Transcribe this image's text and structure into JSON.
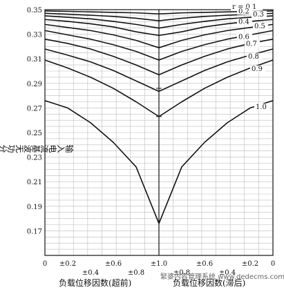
{
  "chart_data": {
    "type": "line",
    "ylabel": "输入电流基波无功分量有效值(pu)",
    "xlabel_left": "负载位移因数(超前)",
    "xlabel_right": "负载位移因数(滞后)",
    "ylim": [
      0.15,
      0.35
    ],
    "yticks": [
      "0.35",
      "0.33",
      "0.31",
      "0.29",
      "0.27",
      "0.25",
      "0.23",
      "0.21",
      "0.19",
      "0.17"
    ],
    "xticks_row1": [
      "0",
      "±0.2",
      "±0.6",
      "±1.0",
      "±0.6",
      "±0.2",
      "0"
    ],
    "xticks_row2": [
      "±0.4",
      "±0.8",
      "±0.8",
      "±0.4"
    ],
    "x": [
      -1.0,
      -0.8,
      -0.6,
      -0.4,
      -0.2,
      0.0,
      0.2,
      0.4,
      0.6,
      0.8,
      1.0
    ],
    "series": [
      {
        "name": "r = 0.1",
        "values": [
          0.349,
          0.3486,
          0.3482,
          0.3478,
          0.3474,
          0.3465,
          0.3474,
          0.3478,
          0.3482,
          0.3486,
          0.349
        ]
      },
      {
        "name": "0.2",
        "values": [
          0.347,
          0.3463,
          0.3455,
          0.3445,
          0.343,
          0.341,
          0.343,
          0.3445,
          0.3455,
          0.3463,
          0.347
        ]
      },
      {
        "name": "0.3",
        "values": [
          0.345,
          0.3438,
          0.3425,
          0.3405,
          0.338,
          0.335,
          0.338,
          0.3405,
          0.3425,
          0.3438,
          0.345
        ]
      },
      {
        "name": "0.4",
        "values": [
          0.342,
          0.3405,
          0.3385,
          0.336,
          0.332,
          0.329,
          0.332,
          0.336,
          0.3385,
          0.3405,
          0.342
        ]
      },
      {
        "name": "0.5",
        "values": [
          0.338,
          0.3355,
          0.333,
          0.3295,
          0.325,
          0.319,
          0.325,
          0.3295,
          0.333,
          0.3355,
          0.338
        ]
      },
      {
        "name": "0.6",
        "values": [
          0.333,
          0.3295,
          0.326,
          0.3215,
          0.316,
          0.309,
          0.316,
          0.3215,
          0.326,
          0.3295,
          0.333
        ]
      },
      {
        "name": "0.7",
        "values": [
          0.326,
          0.3225,
          0.318,
          0.312,
          0.305,
          0.297,
          0.305,
          0.312,
          0.318,
          0.3225,
          0.326
        ]
      },
      {
        "name": "0.8",
        "values": [
          0.318,
          0.313,
          0.3075,
          0.3005,
          0.292,
          0.2835,
          0.292,
          0.3005,
          0.3075,
          0.313,
          0.318
        ]
      },
      {
        "name": "0.9",
        "values": [
          0.309,
          0.3025,
          0.295,
          0.286,
          0.275,
          0.263,
          0.275,
          0.286,
          0.295,
          0.3025,
          0.309
        ]
      },
      {
        "name": "1.0",
        "values": [
          0.276,
          0.27,
          0.258,
          0.242,
          0.222,
          0.176,
          0.222,
          0.242,
          0.258,
          0.27,
          0.276
        ]
      }
    ]
  },
  "watermark": "緊婆内容管理系统 www.dedecms.com"
}
